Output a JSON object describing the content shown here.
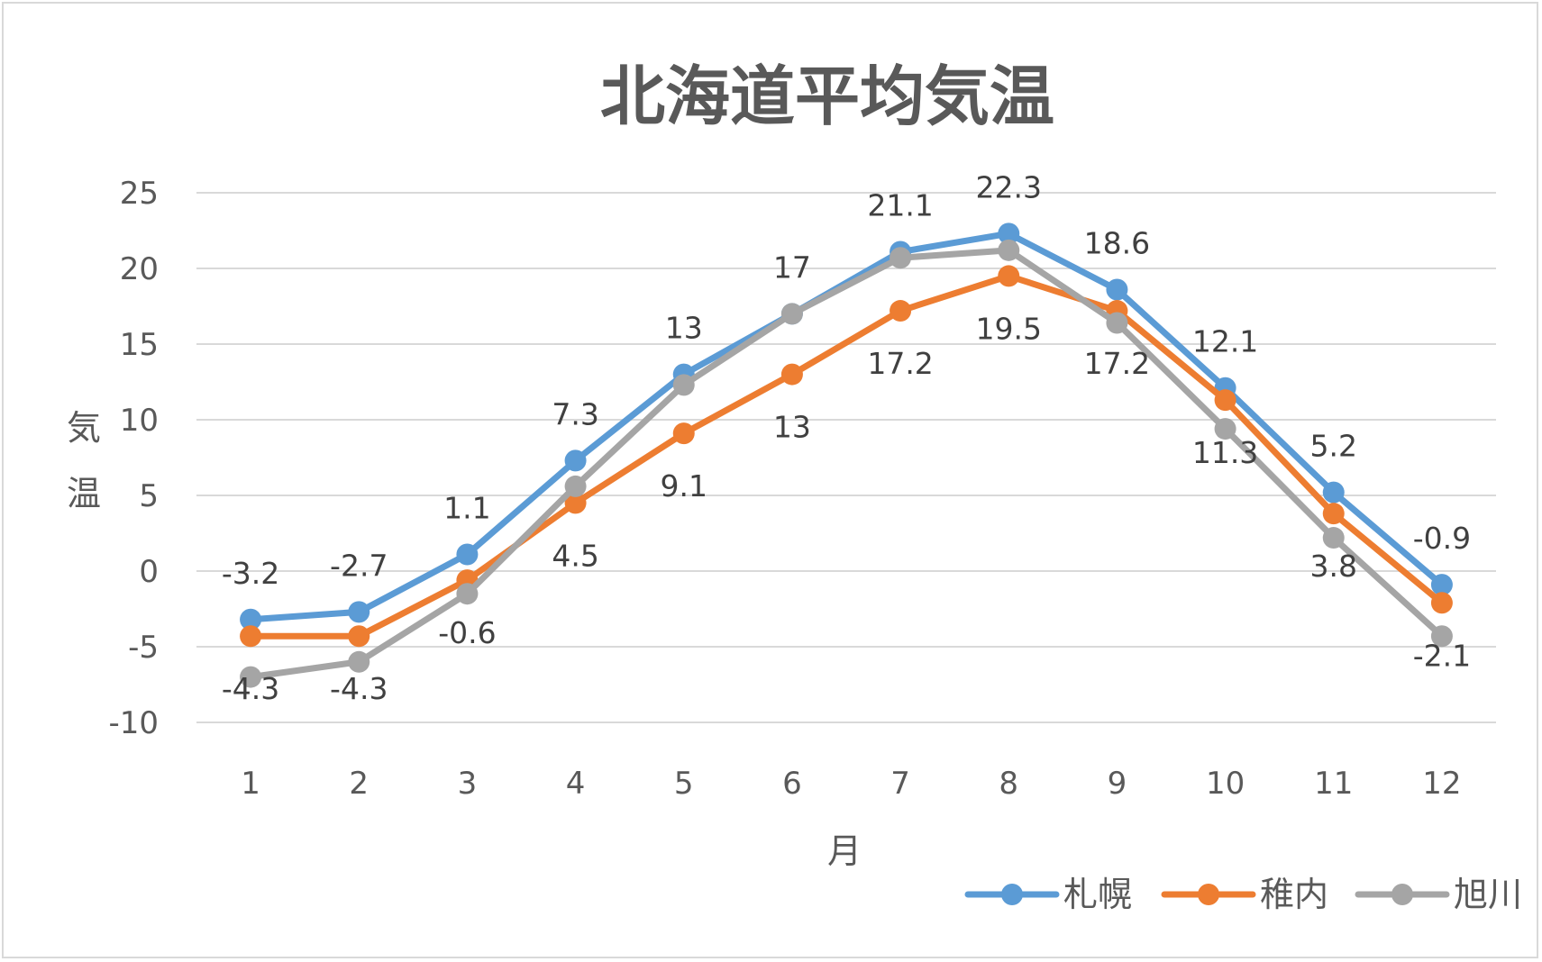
{
  "chart_data": {
    "type": "line",
    "title": "北海道平均気温",
    "xlabel": "月",
    "ylabel": "気温",
    "categories": [
      "1",
      "2",
      "3",
      "4",
      "5",
      "6",
      "7",
      "8",
      "9",
      "10",
      "11",
      "12"
    ],
    "ylim": [
      -10,
      25
    ],
    "yticks": [
      "-10",
      "-5",
      "0",
      "5",
      "10",
      "15",
      "20",
      "25"
    ],
    "grid": true,
    "legend_position": "bottom-right",
    "series": [
      {
        "name": "札幌",
        "color": "#5b9bd5",
        "values": [
          -3.2,
          -2.7,
          1.1,
          7.3,
          13,
          17,
          21.1,
          22.3,
          18.6,
          12.1,
          5.2,
          -0.9
        ],
        "labels": [
          "-3.2",
          "-2.7",
          "1.1",
          "7.3",
          "13",
          "17",
          "21.1",
          "22.3",
          "18.6",
          "12.1",
          "5.2",
          "-0.9"
        ]
      },
      {
        "name": "稚内",
        "color": "#ed7d31",
        "values": [
          -4.3,
          -4.3,
          -0.6,
          4.5,
          9.1,
          13,
          17.2,
          19.5,
          17.2,
          11.3,
          3.8,
          -2.1
        ],
        "labels": [
          "-4.3",
          "-4.3",
          "-0.6",
          "4.5",
          "9.1",
          "13",
          "17.2",
          "19.5",
          "17.2",
          "11.3",
          "3.8",
          "-2.1"
        ]
      },
      {
        "name": "旭川",
        "color": "#a5a5a5",
        "values": [
          -7,
          -6,
          -1.5,
          5.6,
          12.3,
          17,
          20.7,
          21.2,
          16.4,
          9.4,
          2.2,
          -4.3
        ],
        "labels": []
      }
    ]
  }
}
